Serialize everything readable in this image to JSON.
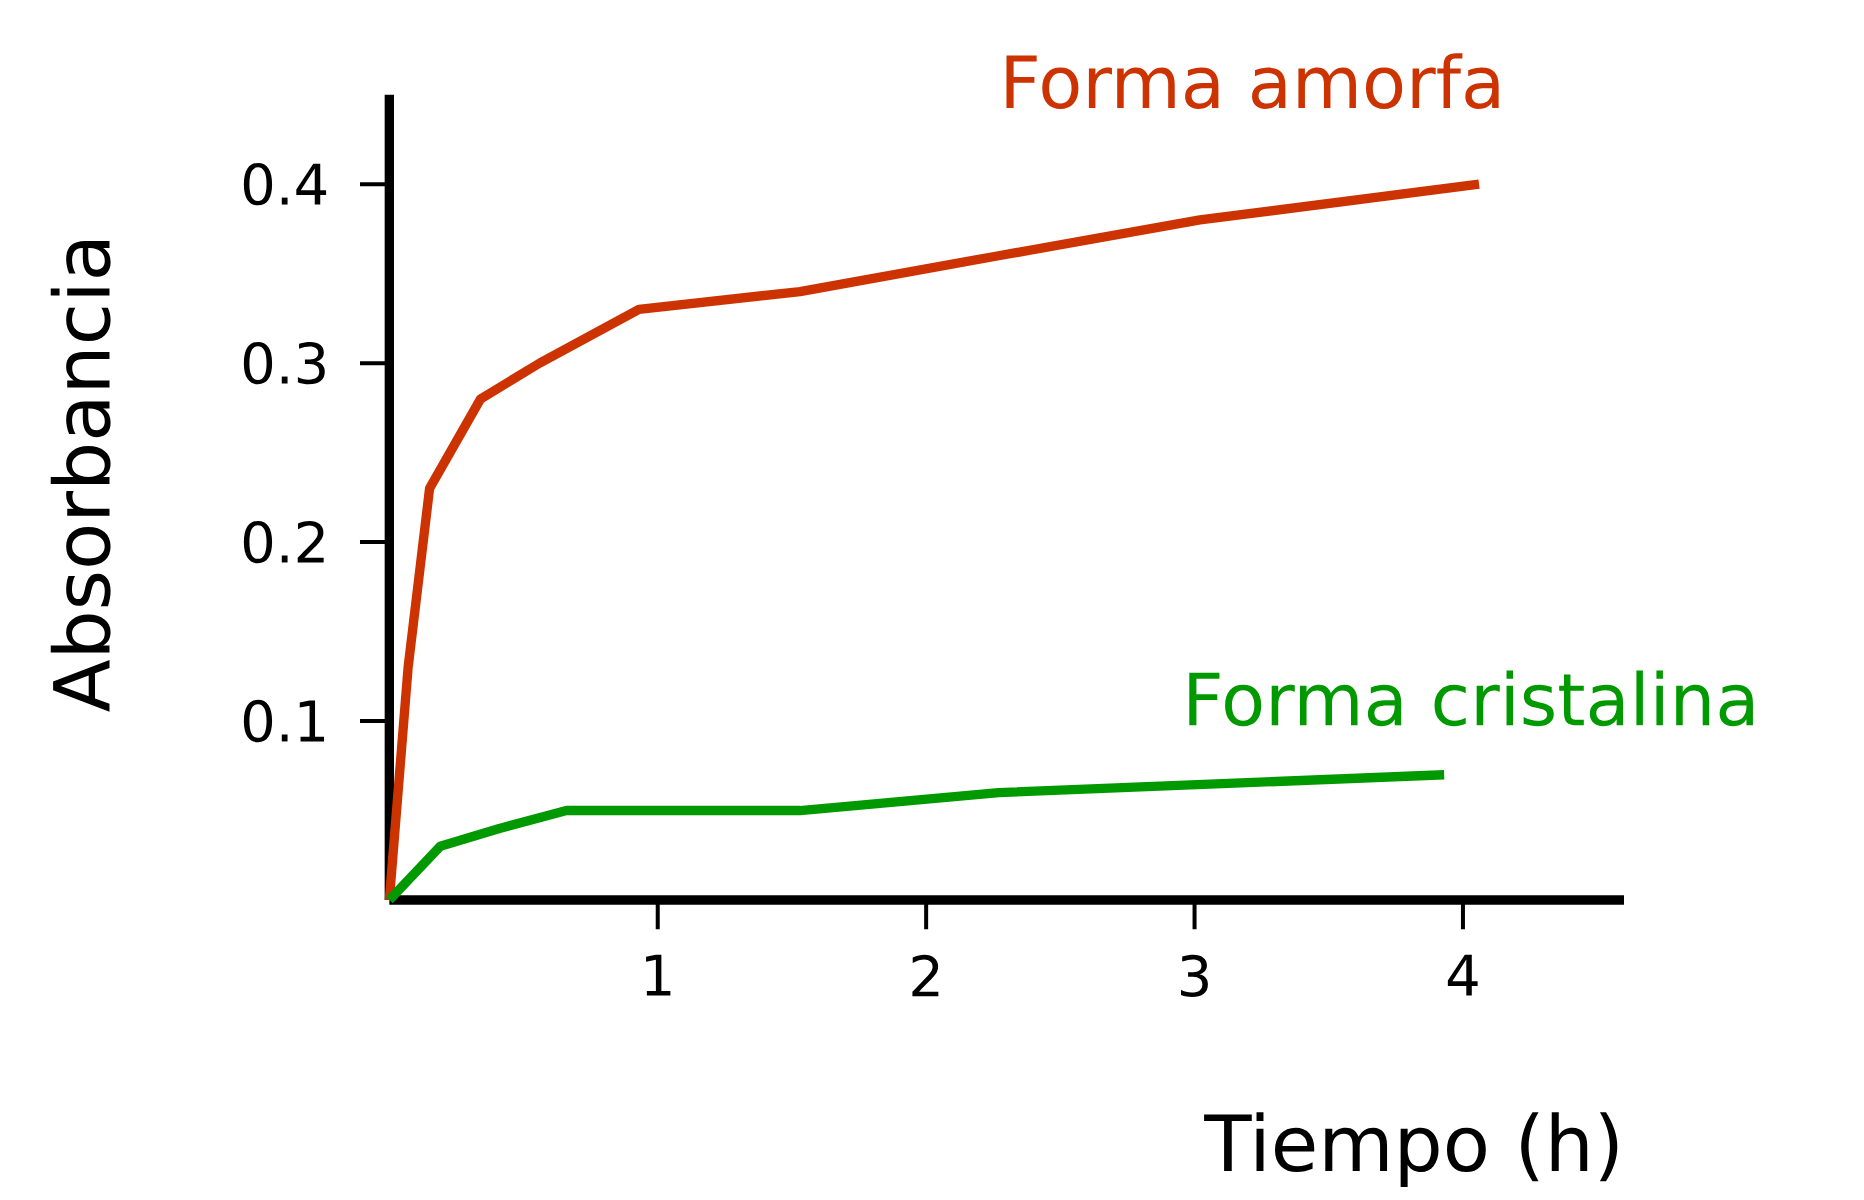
{
  "chart_data": {
    "type": "line",
    "xlabel": "Tiempo (h)",
    "ylabel": "Absorbancia",
    "xlim": [
      0,
      4.6
    ],
    "ylim": [
      0,
      0.45
    ],
    "xticks": [
      1,
      2,
      3,
      4
    ],
    "yticks": [
      0.1,
      0.2,
      0.3,
      0.4
    ],
    "grid": false,
    "legend": false,
    "marker": "none",
    "line_style": "solid",
    "series": [
      {
        "name": "Forma amorfa",
        "color": "#cc3300",
        "x": [
          0,
          0.07,
          0.15,
          0.34,
          0.56,
          0.93,
          1.53,
          2.27,
          3.02,
          4.06
        ],
        "values": [
          0,
          0.13,
          0.23,
          0.28,
          0.3,
          0.33,
          0.34,
          0.36,
          0.38,
          0.4
        ]
      },
      {
        "name": "Forma cristalina",
        "color": "#009900",
        "x": [
          0,
          0.19,
          0.41,
          0.66,
          0.78,
          1.53,
          2.27,
          3.93
        ],
        "values": [
          0,
          0.03,
          0.04,
          0.05,
          0.05,
          0.05,
          0.06,
          0.07
        ]
      }
    ]
  }
}
